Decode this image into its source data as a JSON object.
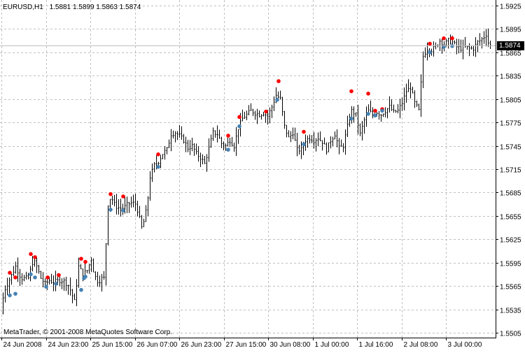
{
  "header": {
    "symbol": "EURUSD,H1",
    "ohlc": "1.5881 1.5899 1.5863 1.5874"
  },
  "copyright": "MetaTrader, © 2001-2008 MetaQuotes Software Corp.",
  "current_price_label": "1.5874",
  "colors": {
    "background": "#ffffff",
    "grid": "#c0c0c0",
    "bar": "#000000",
    "up_fractal": "#ff0000",
    "down_fractal": "#4682b4",
    "price_line": "#c0c0c0"
  },
  "chart_data": {
    "type": "ohlc",
    "symbol": "EURUSD",
    "timeframe": "H1",
    "current_price": 1.5874,
    "ylim": [
      1.5505,
      1.5925
    ],
    "y_ticks": [
      "1.5925",
      "1.5895",
      "1.5865",
      "1.5835",
      "1.5805",
      "1.5775",
      "1.5745",
      "1.5715",
      "1.5685",
      "1.5655",
      "1.5625",
      "1.5595",
      "1.5565",
      "1.5535",
      "1.5505"
    ],
    "x_ticks": [
      "24 Jun 2008",
      "24 Jun 23:00",
      "25 Jun 15:00",
      "26 Jun 07:00",
      "26 Jun 23:00",
      "27 Jun 15:00",
      "30 Jun 08:00",
      "1 Jul 00:00",
      "1 Jul 16:00",
      "2 Jul 08:00",
      "3 Jul 00:00"
    ],
    "grid": true,
    "close_path": [
      [
        0,
        1.553
      ],
      [
        6,
        1.556
      ],
      [
        14,
        1.5575
      ],
      [
        22,
        1.559
      ],
      [
        30,
        1.5575
      ],
      [
        40,
        1.5575
      ],
      [
        46,
        1.5595
      ],
      [
        50,
        1.5595
      ],
      [
        58,
        1.5575
      ],
      [
        64,
        1.5568
      ],
      [
        70,
        1.5572
      ],
      [
        76,
        1.557
      ],
      [
        84,
        1.5572
      ],
      [
        90,
        1.5572
      ],
      [
        98,
        1.5565
      ],
      [
        106,
        1.5545
      ],
      [
        112,
        1.559
      ],
      [
        118,
        1.558
      ],
      [
        124,
        1.5585
      ],
      [
        130,
        1.56
      ],
      [
        134,
        1.558
      ],
      [
        140,
        1.557
      ],
      [
        145,
        1.5575
      ],
      [
        150,
        1.5575
      ],
      [
        152,
        1.5665
      ],
      [
        158,
        1.568
      ],
      [
        164,
        1.5668
      ],
      [
        170,
        1.5665
      ],
      [
        176,
        1.5665
      ],
      [
        182,
        1.567
      ],
      [
        188,
        1.5672
      ],
      [
        194,
        1.567
      ],
      [
        198,
        1.5655
      ],
      [
        202,
        1.564
      ],
      [
        206,
        1.565
      ],
      [
        210,
        1.567
      ],
      [
        214,
        1.5705
      ],
      [
        220,
        1.572
      ],
      [
        226,
        1.5725
      ],
      [
        232,
        1.5735
      ],
      [
        238,
        1.574
      ],
      [
        244,
        1.576
      ],
      [
        250,
        1.5762
      ],
      [
        256,
        1.5758
      ],
      [
        262,
        1.5752
      ],
      [
        268,
        1.5742
      ],
      [
        274,
        1.5745
      ],
      [
        280,
        1.5735
      ],
      [
        286,
        1.573
      ],
      [
        292,
        1.5722
      ],
      [
        298,
        1.5742
      ],
      [
        304,
        1.5762
      ],
      [
        310,
        1.576
      ],
      [
        316,
        1.5748
      ],
      [
        322,
        1.5745
      ],
      [
        328,
        1.5752
      ],
      [
        334,
        1.5745
      ],
      [
        340,
        1.5768
      ],
      [
        346,
        1.578
      ],
      [
        352,
        1.5785
      ],
      [
        358,
        1.579
      ],
      [
        364,
        1.5787
      ],
      [
        370,
        1.5785
      ],
      [
        376,
        1.5787
      ],
      [
        382,
        1.5783
      ],
      [
        388,
        1.5795
      ],
      [
        394,
        1.581
      ],
      [
        400,
        1.5805
      ],
      [
        406,
        1.577
      ],
      [
        412,
        1.5755
      ],
      [
        418,
        1.5762
      ],
      [
        424,
        1.574
      ],
      [
        430,
        1.574
      ],
      [
        436,
        1.5752
      ],
      [
        442,
        1.5755
      ],
      [
        448,
        1.5752
      ],
      [
        454,
        1.5755
      ],
      [
        460,
        1.575
      ],
      [
        466,
        1.574
      ],
      [
        472,
        1.5752
      ],
      [
        478,
        1.576
      ],
      [
        484,
        1.5742
      ],
      [
        490,
        1.5745
      ],
      [
        496,
        1.577
      ],
      [
        502,
        1.579
      ],
      [
        508,
        1.5785
      ],
      [
        514,
        1.576
      ],
      [
        520,
        1.5778
      ],
      [
        526,
        1.579
      ],
      [
        532,
        1.5785
      ],
      [
        538,
        1.5788
      ],
      [
        544,
        1.5785
      ],
      [
        550,
        1.579
      ],
      [
        556,
        1.5795
      ],
      [
        562,
        1.5788
      ],
      [
        568,
        1.579
      ],
      [
        574,
        1.58
      ],
      [
        580,
        1.5815
      ],
      [
        586,
        1.582
      ],
      [
        592,
        1.58
      ],
      [
        598,
        1.579
      ],
      [
        604,
        1.586
      ],
      [
        610,
        1.587
      ],
      [
        616,
        1.5868
      ],
      [
        622,
        1.5872
      ],
      [
        628,
        1.588
      ],
      [
        634,
        1.5875
      ],
      [
        640,
        1.588
      ],
      [
        646,
        1.5878
      ],
      [
        652,
        1.5872
      ],
      [
        658,
        1.587
      ],
      [
        664,
        1.5872
      ],
      [
        670,
        1.587
      ],
      [
        676,
        1.587
      ],
      [
        682,
        1.5878
      ],
      [
        688,
        1.5882
      ],
      [
        694,
        1.5888
      ],
      [
        698,
        1.5874
      ]
    ],
    "up_fractals": [
      [
        14,
        1.5582
      ],
      [
        22,
        1.5576
      ],
      [
        44,
        1.5606
      ],
      [
        50,
        1.5602
      ],
      [
        68,
        1.5576
      ],
      [
        84,
        1.5579
      ],
      [
        116,
        1.56
      ],
      [
        122,
        1.5596
      ],
      [
        158,
        1.5683
      ],
      [
        176,
        1.568
      ],
      [
        226,
        1.5734
      ],
      [
        326,
        1.5758
      ],
      [
        342,
        1.5782
      ],
      [
        380,
        1.5789
      ],
      [
        398,
        1.5828
      ],
      [
        434,
        1.5763
      ],
      [
        502,
        1.5815
      ],
      [
        526,
        1.5812
      ],
      [
        536,
        1.579
      ],
      [
        546,
        1.5792
      ],
      [
        614,
        1.5876
      ],
      [
        634,
        1.5883
      ],
      [
        646,
        1.5883
      ]
    ],
    "down_fractals": [
      [
        14,
        1.5553
      ],
      [
        22,
        1.5555
      ],
      [
        44,
        1.558
      ],
      [
        50,
        1.5576
      ],
      [
        66,
        1.5564
      ],
      [
        80,
        1.5568
      ],
      [
        116,
        1.556
      ],
      [
        120,
        1.5575
      ],
      [
        122,
        1.5577
      ],
      [
        158,
        1.5663
      ],
      [
        176,
        1.5662
      ],
      [
        226,
        1.5718
      ],
      [
        326,
        1.574
      ],
      [
        342,
        1.577
      ],
      [
        396,
        1.5804
      ],
      [
        434,
        1.5747
      ],
      [
        502,
        1.578
      ],
      [
        526,
        1.5786
      ],
      [
        536,
        1.5784
      ],
      [
        546,
        1.579
      ],
      [
        614,
        1.5865
      ],
      [
        634,
        1.5872
      ],
      [
        646,
        1.5873
      ]
    ]
  }
}
